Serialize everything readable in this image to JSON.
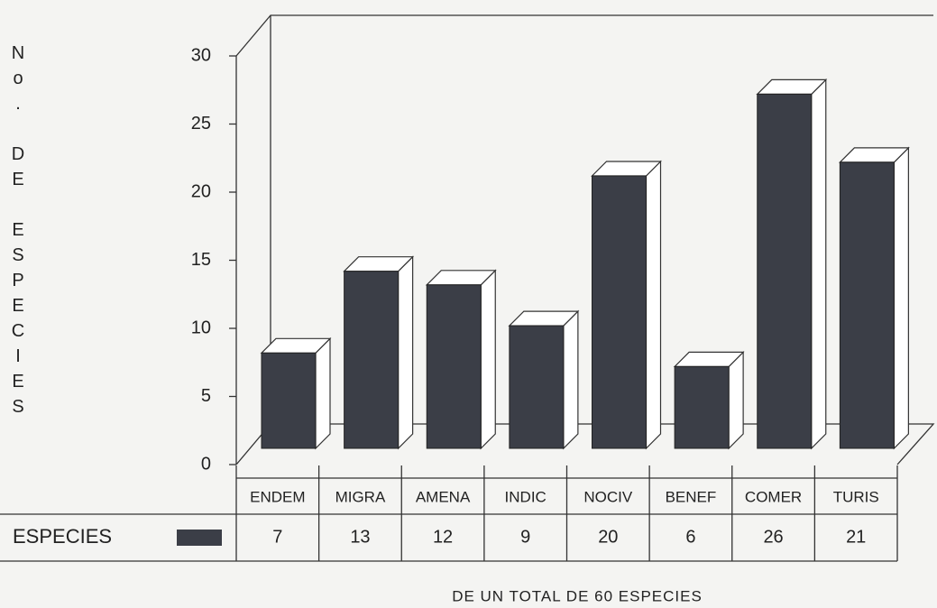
{
  "chart_data": {
    "type": "bar3d",
    "y_label": "No. DE ESPECIES",
    "x_label": "DE UN TOTAL DE 60 ESPECIES",
    "categories": [
      "ENDEM",
      "MIGRA",
      "AMENA",
      "INDIC",
      "NOCIV",
      "BENEF",
      "COMER",
      "TURIS"
    ],
    "series": [
      {
        "name": "ESPECIES",
        "color": "#3b3e47",
        "values": [
          7,
          13,
          12,
          9,
          20,
          6,
          26,
          21
        ]
      }
    ],
    "ylim": [
      0,
      30
    ],
    "yticks": [
      0,
      5,
      10,
      15,
      20,
      25,
      30
    ],
    "grid": false,
    "data_table": true
  }
}
